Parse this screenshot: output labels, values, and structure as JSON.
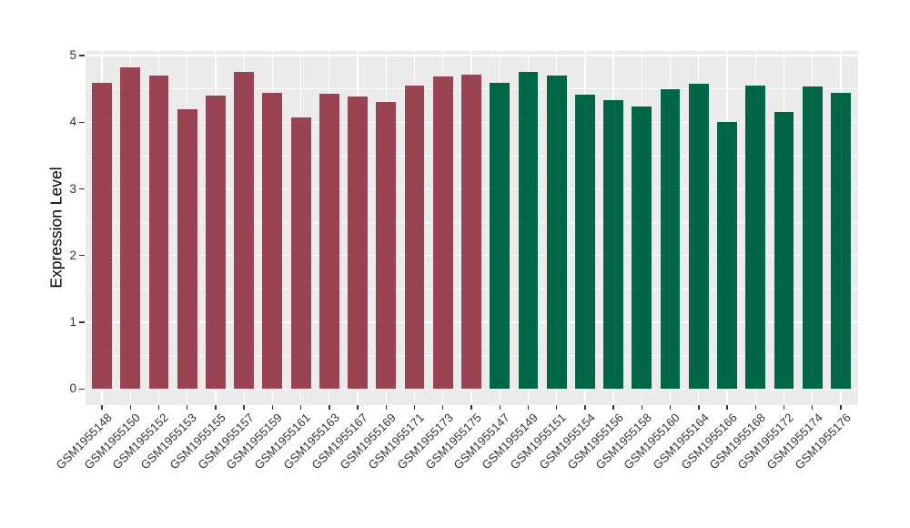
{
  "figure": {
    "background": "#FFFFFF",
    "panel_background": "#EBEBEB",
    "gridline_color": "#FFFFFF",
    "axis_text_color": "#333333",
    "axis_title_color": "#000000"
  },
  "chart_data": {
    "type": "bar",
    "title": "",
    "xlabel": "",
    "ylabel": "Expression Level",
    "ylim": [
      0,
      5
    ],
    "yticks": [
      0,
      1,
      2,
      3,
      4,
      5
    ],
    "grid": "horizontal major at integers and minor at halves, vertical major at bar centers, white on grey panel",
    "legend_position": "none",
    "groups": [
      {
        "name": "group-1-maroon",
        "color": "#9A4352"
      },
      {
        "name": "group-2-green",
        "color": "#006648"
      }
    ],
    "categories": [
      "GSM1955148",
      "GSM1955150",
      "GSM1955152",
      "GSM1955153",
      "GSM1955155",
      "GSM1955157",
      "GSM1955159",
      "GSM1955161",
      "GSM1955163",
      "GSM1955167",
      "GSM1955169",
      "GSM1955171",
      "GSM1955173",
      "GSM1955175",
      "GSM1955147",
      "GSM1955149",
      "GSM1955151",
      "GSM1955154",
      "GSM1955156",
      "GSM1955158",
      "GSM1955160",
      "GSM1955164",
      "GSM1955166",
      "GSM1955168",
      "GSM1955172",
      "GSM1955174",
      "GSM1955176"
    ],
    "values": [
      4.59,
      4.82,
      4.7,
      4.19,
      4.4,
      4.76,
      4.44,
      4.07,
      4.43,
      4.39,
      4.3,
      4.55,
      4.68,
      4.71,
      4.59,
      4.76,
      4.7,
      4.41,
      4.33,
      4.23,
      4.49,
      4.58,
      4.01,
      4.55,
      4.15,
      4.53,
      4.44
    ],
    "bar_group_index": [
      0,
      0,
      0,
      0,
      0,
      0,
      0,
      0,
      0,
      0,
      0,
      0,
      0,
      0,
      1,
      1,
      1,
      1,
      1,
      1,
      1,
      1,
      1,
      1,
      1,
      1,
      1
    ]
  }
}
